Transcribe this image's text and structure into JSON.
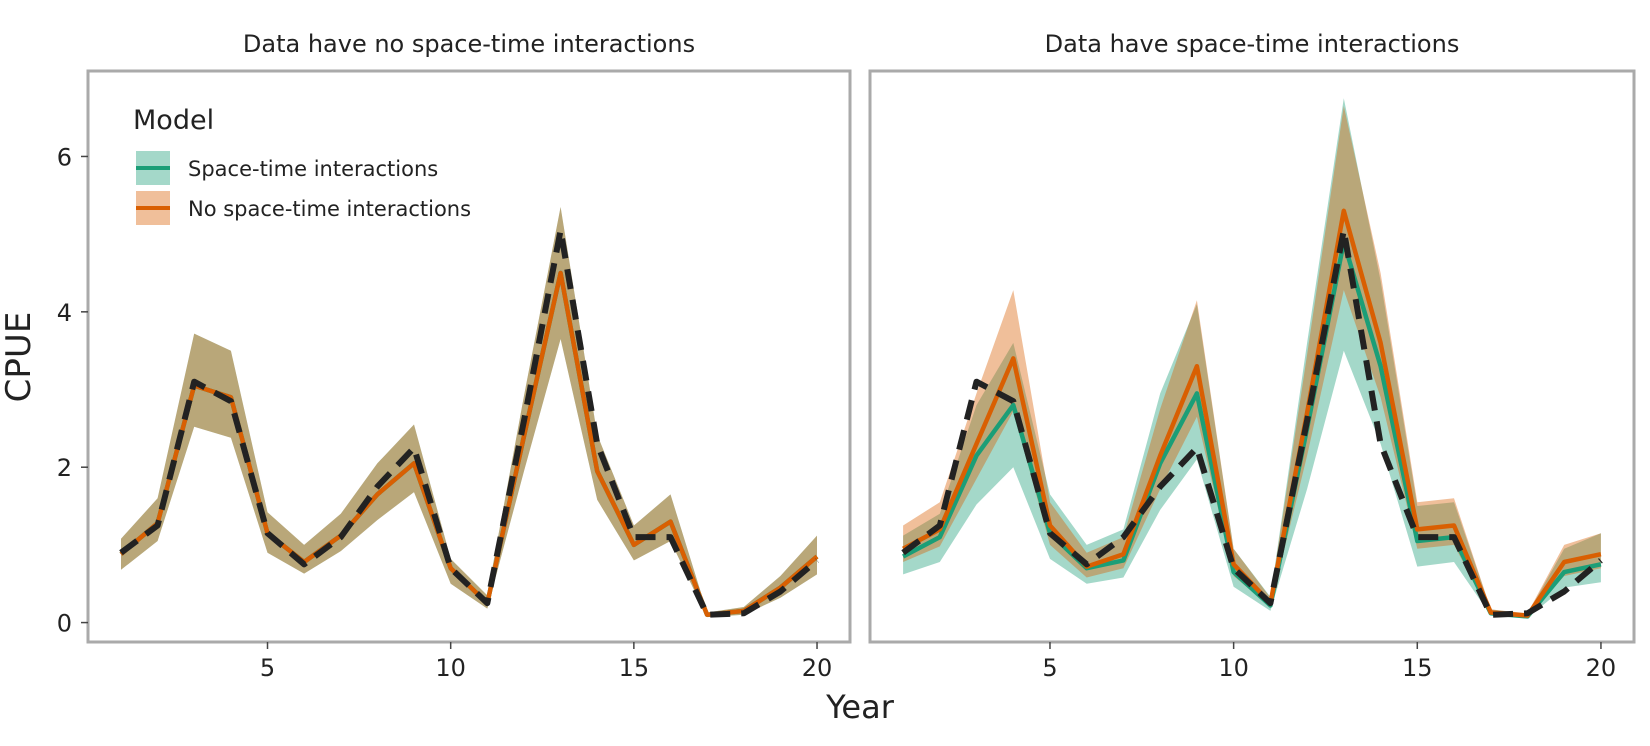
{
  "figure": {
    "xlabel": "Year",
    "ylabel": "CPUE"
  },
  "legend": {
    "title": "Model",
    "entries": [
      {
        "label": "Space-time interactions",
        "color": "#1b9e77",
        "fill": "#1b9e77"
      },
      {
        "label": "No space-time interactions",
        "color": "#d95f02",
        "fill": "#d95f02"
      }
    ]
  },
  "colors": {
    "green": "#1b9e77",
    "orange": "#d95f02",
    "truth": "#222222",
    "frame": "#aaaaaa",
    "overlap_fill": "#a8875f"
  },
  "chart_data": [
    {
      "type": "line",
      "title": "Data have no space-time interactions",
      "xlabel": "Year",
      "ylabel": "CPUE",
      "xlim": [
        0.1,
        20.9
      ],
      "ylim": [
        -0.25,
        7.1
      ],
      "xticks": [
        5,
        10,
        15,
        20
      ],
      "yticks": [
        0,
        2,
        4,
        6
      ],
      "grid": false,
      "legend_position": "top-left",
      "x": [
        1,
        2,
        3,
        4,
        5,
        6,
        7,
        8,
        9,
        10,
        11,
        12,
        13,
        14,
        15,
        16,
        17,
        18,
        19,
        20
      ],
      "truth": {
        "style": "dashed",
        "values": [
          0.9,
          1.25,
          3.1,
          2.85,
          1.15,
          0.75,
          1.1,
          1.75,
          2.25,
          0.7,
          0.25,
          2.6,
          5.05,
          2.3,
          1.1,
          1.1,
          0.1,
          0.12,
          0.4,
          0.8
        ]
      },
      "series": [
        {
          "name": "Space-time interactions",
          "values": [
            0.88,
            1.28,
            3.05,
            2.9,
            1.15,
            0.78,
            1.12,
            1.65,
            2.05,
            0.7,
            0.25,
            2.4,
            4.5,
            1.95,
            1.0,
            1.3,
            0.1,
            0.15,
            0.45,
            0.85
          ],
          "lower": [
            0.68,
            1.05,
            2.52,
            2.38,
            0.9,
            0.63,
            0.92,
            1.32,
            1.68,
            0.5,
            0.18,
            1.95,
            3.65,
            1.58,
            0.8,
            1.05,
            0.07,
            0.1,
            0.32,
            0.62
          ],
          "upper": [
            1.08,
            1.6,
            3.72,
            3.5,
            1.42,
            1.0,
            1.4,
            2.05,
            2.55,
            0.82,
            0.35,
            2.92,
            5.35,
            2.42,
            1.25,
            1.65,
            0.13,
            0.2,
            0.6,
            1.12
          ]
        },
        {
          "name": "No space-time interactions",
          "values": [
            0.88,
            1.28,
            3.05,
            2.9,
            1.15,
            0.78,
            1.12,
            1.65,
            2.05,
            0.7,
            0.25,
            2.4,
            4.5,
            1.95,
            1.0,
            1.3,
            0.1,
            0.15,
            0.45,
            0.85
          ],
          "lower": [
            0.68,
            1.05,
            2.52,
            2.38,
            0.9,
            0.63,
            0.92,
            1.32,
            1.68,
            0.5,
            0.18,
            1.95,
            3.65,
            1.58,
            0.8,
            1.05,
            0.07,
            0.1,
            0.32,
            0.62
          ],
          "upper": [
            1.08,
            1.6,
            3.72,
            3.5,
            1.42,
            1.0,
            1.4,
            2.05,
            2.55,
            0.82,
            0.35,
            2.92,
            5.35,
            2.42,
            1.25,
            1.65,
            0.13,
            0.2,
            0.6,
            1.12
          ]
        }
      ]
    },
    {
      "type": "line",
      "title": "Data have space-time interactions",
      "xlabel": "Year",
      "ylabel": "CPUE",
      "xlim": [
        0.1,
        20.9
      ],
      "ylim": [
        -0.25,
        7.1
      ],
      "xticks": [
        5,
        10,
        15,
        20
      ],
      "yticks": [
        0,
        2,
        4,
        6
      ],
      "grid": false,
      "legend_position": "none",
      "x": [
        1,
        2,
        3,
        4,
        5,
        6,
        7,
        8,
        9,
        10,
        11,
        12,
        13,
        14,
        15,
        16,
        17,
        18,
        19,
        20
      ],
      "truth": {
        "style": "dashed",
        "values": [
          0.9,
          1.25,
          3.1,
          2.85,
          1.15,
          0.75,
          1.1,
          1.75,
          2.25,
          0.7,
          0.25,
          2.6,
          5.05,
          2.3,
          1.1,
          1.1,
          0.1,
          0.12,
          0.4,
          0.8
        ]
      },
      "series": [
        {
          "name": "Space-time interactions",
          "values": [
            0.85,
            1.1,
            2.15,
            2.8,
            1.15,
            0.7,
            0.8,
            2.05,
            2.95,
            0.65,
            0.22,
            2.5,
            4.9,
            3.3,
            1.05,
            1.1,
            0.12,
            0.08,
            0.65,
            0.75
          ],
          "lower": [
            0.62,
            0.78,
            1.52,
            2.0,
            0.82,
            0.5,
            0.58,
            1.45,
            2.1,
            0.46,
            0.15,
            1.72,
            3.5,
            2.3,
            0.72,
            0.78,
            0.09,
            0.06,
            0.45,
            0.52
          ],
          "upper": [
            1.12,
            1.4,
            2.8,
            3.6,
            1.65,
            1.0,
            1.2,
            2.95,
            4.1,
            0.95,
            0.33,
            3.6,
            6.75,
            4.4,
            1.5,
            1.55,
            0.17,
            0.11,
            0.95,
            1.15
          ]
        },
        {
          "name": "No space-time interactions",
          "values": [
            0.95,
            1.2,
            2.3,
            3.4,
            1.25,
            0.72,
            0.88,
            2.15,
            3.3,
            0.75,
            0.25,
            2.7,
            5.3,
            3.6,
            1.2,
            1.25,
            0.13,
            0.09,
            0.78,
            0.88
          ],
          "lower": [
            0.78,
            0.98,
            1.85,
            2.72,
            1.0,
            0.58,
            0.7,
            1.72,
            2.65,
            0.6,
            0.2,
            2.15,
            4.28,
            2.9,
            0.95,
            1.0,
            0.1,
            0.07,
            0.6,
            0.7
          ],
          "upper": [
            1.25,
            1.55,
            2.95,
            4.28,
            1.55,
            0.9,
            1.1,
            2.75,
            4.15,
            0.95,
            0.32,
            3.45,
            6.65,
            4.5,
            1.55,
            1.6,
            0.17,
            0.12,
            1.0,
            1.15
          ]
        }
      ]
    }
  ]
}
